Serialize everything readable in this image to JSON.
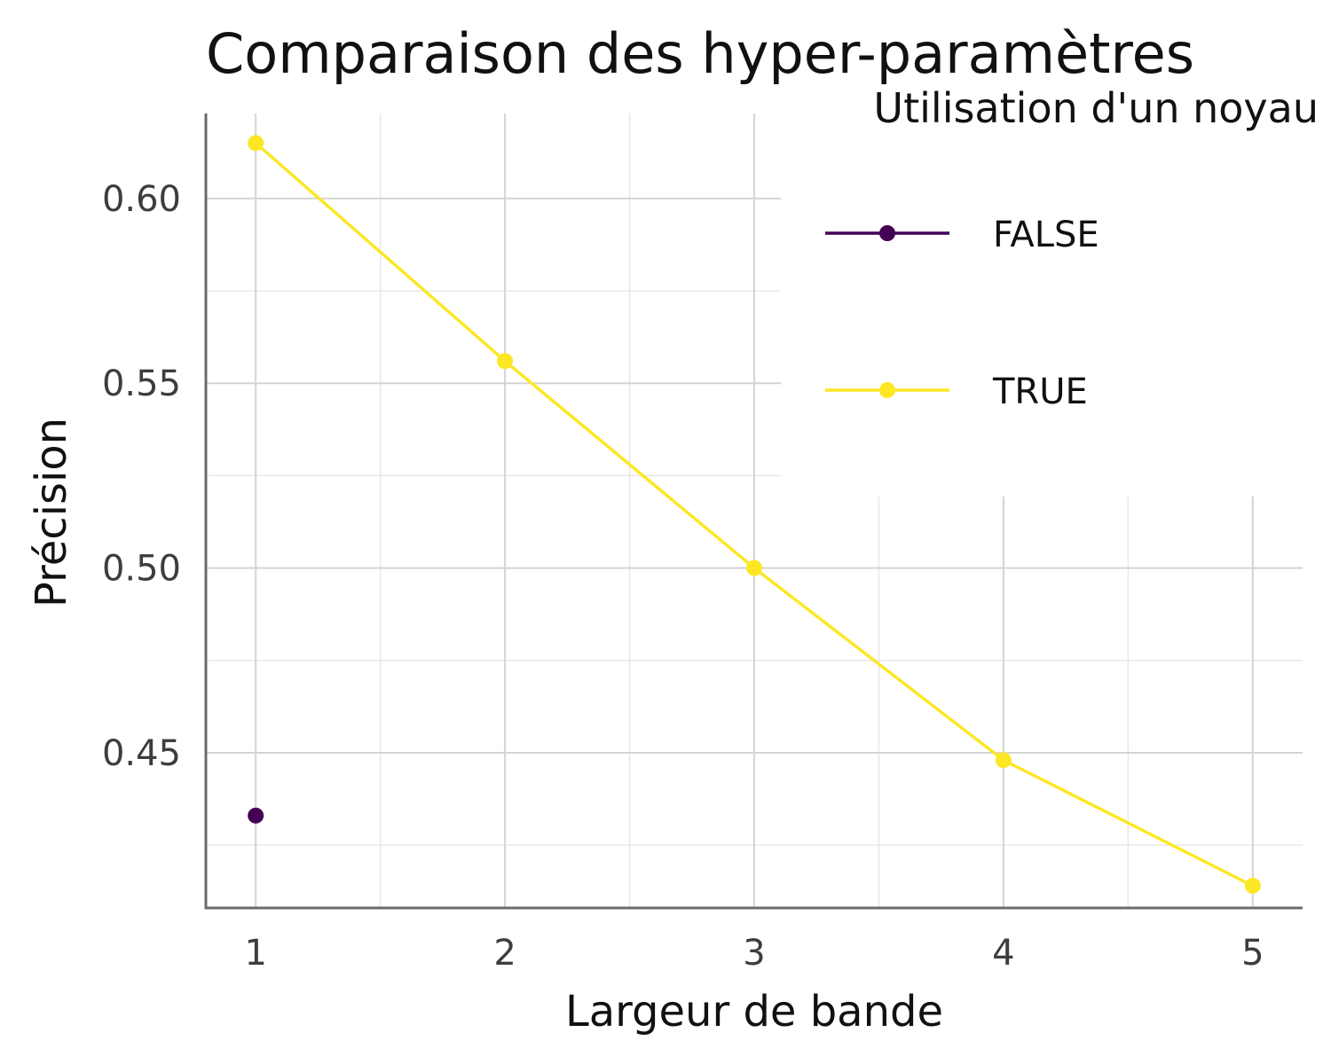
{
  "chart_data": {
    "type": "line",
    "title": "Comparaison des hyper-paramètres",
    "xlabel": "Largeur de bande",
    "ylabel": "Précision",
    "x_ticks": [
      1,
      2,
      3,
      4,
      5
    ],
    "x_tick_labels": [
      "1",
      "2",
      "3",
      "4",
      "5"
    ],
    "y_ticks": [
      0.45,
      0.5,
      0.55,
      0.6
    ],
    "y_tick_labels": [
      "0.45",
      "0.50",
      "0.55",
      "0.60"
    ],
    "xlim": [
      0.8,
      5.2
    ],
    "ylim": [
      0.408,
      0.623
    ],
    "grid": true,
    "legend": {
      "title": "Utilisation d'un noyau",
      "position": "top-right, inside"
    },
    "series": [
      {
        "name": "FALSE",
        "color": "#440154",
        "points": [
          [
            1,
            0.433
          ]
        ]
      },
      {
        "name": "TRUE",
        "color": "#fde725",
        "points": [
          [
            1,
            0.615
          ],
          [
            2,
            0.556
          ],
          [
            3,
            0.5
          ],
          [
            4,
            0.448
          ],
          [
            5,
            0.414
          ]
        ]
      }
    ]
  }
}
